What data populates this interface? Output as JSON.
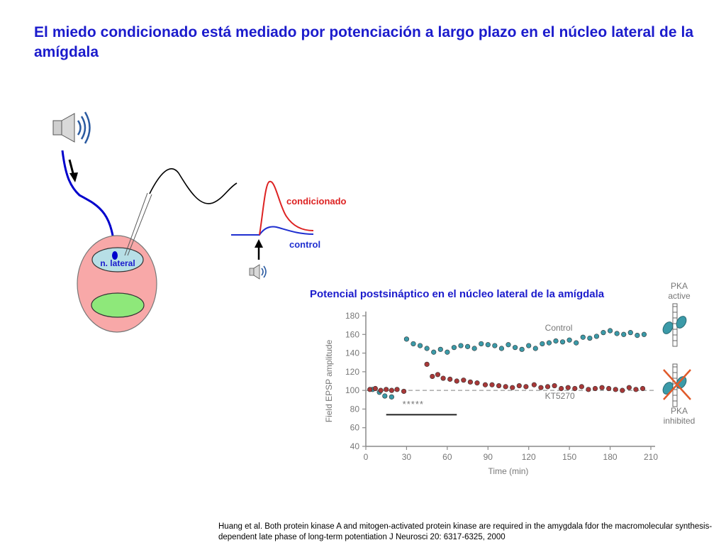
{
  "slide": {
    "title": "El miedo condicionado está mediado por potenciación a largo plazo en el núcleo lateral de la amígdala",
    "footer": "Huang et al. Both protein kinase A and mitogen-activated protein kinase are required in the amygdala fdor the macromolecular synthesis-dependent late phase of long-term potentiation J Neurosci 20: 6317-6325,  2000"
  },
  "diagram": {
    "nucleus_label": "n. lateral",
    "conditioned_label": "condicionado",
    "control_label": "control",
    "sound_icon": "speaker-icon",
    "colors": {
      "title": "#1b1bcc",
      "pathway": "#0000cc",
      "amygdala": "#f8a8a8",
      "nucleus": "#b7dfe6",
      "green_nucleus": "#8ee87a",
      "conditioned_trace": "#dd2222",
      "control_trace": "#1f2fd0"
    }
  },
  "chart_data": {
    "type": "scatter",
    "title": "Potencial postsináptico  en el núcleo lateral de la amígdala",
    "xlabel": "Time (min)",
    "ylabel": "Field EPSP amplitude",
    "xlim": [
      0,
      210
    ],
    "ylim": [
      40,
      180
    ],
    "xticks": [
      0,
      30,
      60,
      90,
      120,
      150,
      180,
      210
    ],
    "yticks": [
      40,
      60,
      80,
      100,
      120,
      140,
      160,
      180
    ],
    "baseline": 100,
    "drug_label": "KT5270",
    "drug_marks": "*****",
    "drug_interval": [
      15,
      67
    ],
    "pka_active_label": "PKA\nactive",
    "pka_inhibited_label": "PKA\ninhibited",
    "series": [
      {
        "name": "Control",
        "color": "#3b9aa8",
        "x": [
          5,
          10,
          14,
          19,
          30,
          35,
          40,
          45,
          50,
          55,
          60,
          65,
          70,
          75,
          80,
          85,
          90,
          95,
          100,
          105,
          110,
          115,
          120,
          125,
          130,
          135,
          140,
          145,
          150,
          155,
          160,
          165,
          170,
          175,
          180,
          185,
          190,
          195,
          200,
          205
        ],
        "y": [
          101,
          98,
          94,
          93,
          155,
          150,
          148,
          145,
          141,
          144,
          141,
          146,
          148,
          147,
          145,
          150,
          149,
          148,
          145,
          149,
          146,
          144,
          148,
          145,
          150,
          151,
          153,
          152,
          154,
          151,
          157,
          156,
          158,
          162,
          164,
          161,
          160,
          162,
          159,
          160
        ]
      },
      {
        "name": "KT5270",
        "color": "#a83838",
        "x": [
          3,
          7,
          11,
          15,
          19,
          23,
          28,
          45,
          49,
          53,
          57,
          62,
          67,
          72,
          77,
          82,
          88,
          93,
          98,
          103,
          108,
          113,
          118,
          124,
          129,
          134,
          139,
          144,
          149,
          154,
          159,
          164,
          169,
          174,
          179,
          184,
          189,
          194,
          199,
          204
        ],
        "y": [
          101,
          102,
          100,
          101,
          100,
          101,
          99,
          128,
          115,
          117,
          113,
          112,
          110,
          111,
          109,
          108,
          106,
          106,
          105,
          104,
          103,
          105,
          104,
          106,
          103,
          104,
          105,
          102,
          103,
          102,
          104,
          101,
          102,
          103,
          102,
          101,
          100,
          103,
          101,
          102
        ]
      }
    ]
  }
}
